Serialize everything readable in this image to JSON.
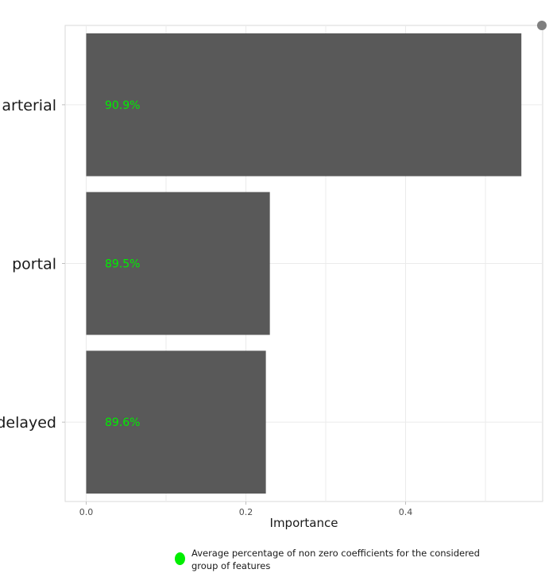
{
  "chart_data": {
    "type": "bar",
    "orientation": "horizontal",
    "categories": [
      "arterial",
      "portal",
      "delayed"
    ],
    "values": [
      0.545,
      0.23,
      0.225
    ],
    "data_labels": [
      "90.9%",
      "89.5%",
      "89.6%"
    ],
    "xlabel": "Importance",
    "ylabel": "",
    "xlim": [
      -0.055,
      0.57
    ],
    "xticks": [
      0.0,
      0.2,
      0.4
    ],
    "xtick_labels": [
      "0.0",
      "0.2",
      "0.4"
    ],
    "grid": true,
    "bar_color": "#595959",
    "label_color": "#00ee00",
    "legend": {
      "position": "bottom",
      "marker_color": "#00ee00",
      "text": "Average percentage of non zero coefficients for the considered group of features"
    }
  }
}
